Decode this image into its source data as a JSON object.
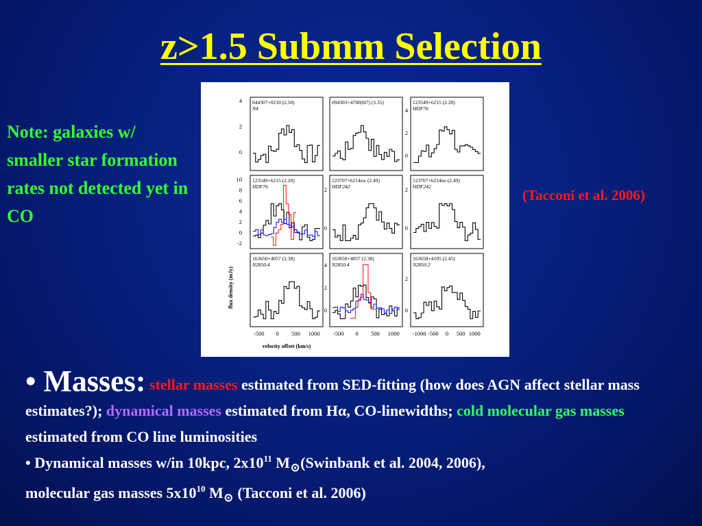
{
  "title": "z>1.5 Submm Selection",
  "note": "Note: galaxies w/ smaller star formation rates not detected yet in CO",
  "citation": "(Tacconi et al. 2006)",
  "figure": {
    "ylabel": "flux density (mJy)",
    "xlabel": "velocity offset (km/s)",
    "panels": [
      {
        "id": "044307+0210 (2.50)",
        "field": "N4"
      },
      {
        "id": "094303+4700(H7) (3.35)",
        "field": ""
      },
      {
        "id": "123549+6215 (2.20)",
        "field": "HDF76"
      },
      {
        "id": "123549+6215 (2.20)",
        "field": "HDF76"
      },
      {
        "id": "123707+6214sw (2.49)",
        "field": "HDF242"
      },
      {
        "id": "123707+6214ne (2.49)",
        "field": "HDF242"
      },
      {
        "id": "163650+4057 (2.38)",
        "field": "N2850.4"
      },
      {
        "id": "163650+4057 (2.38)",
        "field": "N2850.4"
      },
      {
        "id": "163658+4105 (2.45)",
        "field": "N2850.2"
      }
    ],
    "yticks_row1_col1": [
      "4",
      "2",
      "0"
    ],
    "yticks_row1_col3": [
      "4",
      "2",
      "0"
    ],
    "yticks_row2_col1": [
      "10",
      "8",
      "6",
      "4",
      "2",
      "0",
      "-2"
    ],
    "yticks_row2_col2": [
      "2",
      "0"
    ],
    "yticks_row2_col3": [
      "2",
      "0"
    ],
    "yticks_row3_col2": [
      "4",
      "2",
      "0"
    ],
    "yticks_row3_col3": [
      "2",
      "0"
    ],
    "xticks_a": [
      "-500",
      "0",
      "500",
      "1000"
    ],
    "xticks_c": [
      "-1000",
      "-500",
      "0",
      "500",
      "1000"
    ]
  },
  "bottom": {
    "bullet1_lead": "• Masses:",
    "stellar": "stellar masses",
    "t1": " estimated from SED-fitting (how does AGN affect stellar mass estimates?); ",
    "dynamical": "dynamical masses",
    "t2": " estimated from H",
    "alpha": "α",
    "t3": ", CO-linewidths; ",
    "cold": "cold molecular gas masses",
    "t4": " estimated from CO line luminosities",
    "b2_a": "• Dynamical masses w/in 10kpc, 2x10",
    "b2_exp1": "11",
    "b2_b": " M",
    "sun": "⊙",
    "b2_c": "(Swinbank et al. 2004, 2006),",
    "b3_a": "molecular gas masses 5x10",
    "b3_exp": "10",
    "b3_b": " M",
    "b3_c": " (Tacconi et al. 2006)"
  }
}
